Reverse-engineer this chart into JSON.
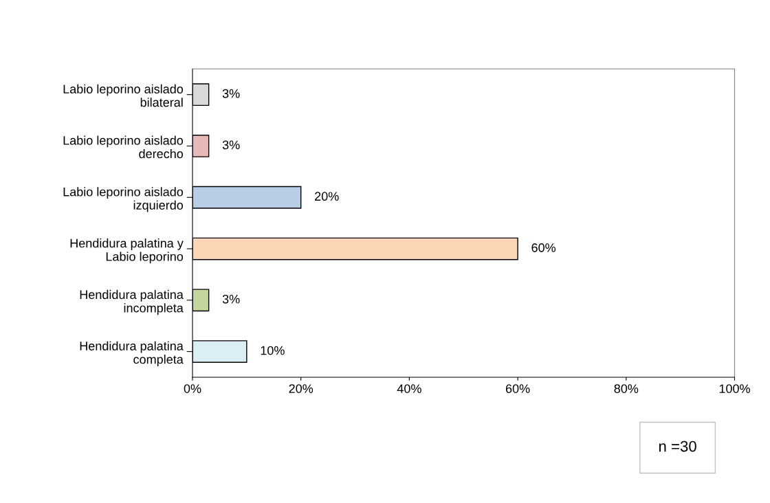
{
  "chart_data": {
    "type": "bar",
    "orientation": "horizontal",
    "categories": [
      "Labio leporino aislado\nbilateral",
      "Labio leporino aislado\nderecho",
      "Labio leporino aislado\nizquierdo",
      "Hendidura palatina y\nLabio leporino",
      "Hendidura palatina\nincompleta",
      "Hendidura palatina\ncompleta"
    ],
    "values": [
      3,
      3,
      20,
      60,
      3,
      10
    ],
    "colors": [
      "#d9d9d9",
      "#e6b9b8",
      "#b9cde5",
      "#fcd5b5",
      "#c3d69b",
      "#dbeef4"
    ],
    "value_labels": [
      "3%",
      "3%",
      "20%",
      "60%",
      "3%",
      "10%"
    ],
    "xlim": [
      0,
      100
    ],
    "xticks": [
      {
        "value": 0,
        "label": "0%"
      },
      {
        "value": 20,
        "label": "20%"
      },
      {
        "value": 40,
        "label": "40%"
      },
      {
        "value": 60,
        "label": "60%"
      },
      {
        "value": 80,
        "label": "80%"
      },
      {
        "value": 100,
        "label": "100%"
      }
    ],
    "grid": false,
    "legend": false,
    "annotations": [
      "n =30"
    ]
  }
}
